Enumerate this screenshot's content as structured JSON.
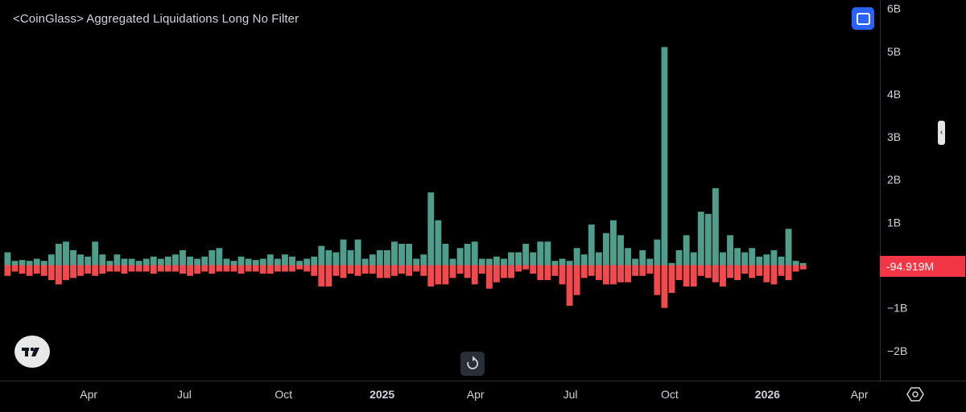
{
  "header": {
    "title": "<CoinGlass> Aggregated Liquidations Long No Filter"
  },
  "price_label": "-94.919M",
  "colors": {
    "background": "#000000",
    "positive": "#4e9e8b",
    "negative": "#f04a4f",
    "label_bg": "#f23645",
    "text": "#d1d4dc",
    "accent": "#2962ff"
  },
  "icons": {
    "fullscreen": "fullscreen-icon",
    "collapse": "chevron-left-icon",
    "logo": "tradingview-logo-icon",
    "reset": "reset-icon",
    "settings": "settings-icon"
  },
  "chart_data": {
    "type": "bar",
    "title": "<CoinGlass> Aggregated Liquidations Long No Filter",
    "ylim": [
      -2.7,
      6.2
    ],
    "y_unit": "B",
    "grid": false,
    "y_ticks": [
      {
        "value": 6,
        "label": "6B"
      },
      {
        "value": 5,
        "label": "5B"
      },
      {
        "value": 4,
        "label": "4B"
      },
      {
        "value": 3,
        "label": "3B"
      },
      {
        "value": 2,
        "label": "2B"
      },
      {
        "value": 1,
        "label": "1B"
      },
      {
        "value": -1,
        "label": "−1B"
      },
      {
        "value": -2,
        "label": "−2B"
      }
    ],
    "x_ticks": [
      {
        "index": 11.6,
        "label": "Apr",
        "bold": false
      },
      {
        "index": 24.7,
        "label": "Jul",
        "bold": false
      },
      {
        "index": 38.3,
        "label": "Oct",
        "bold": false
      },
      {
        "index": 51.8,
        "label": "2025",
        "bold": true
      },
      {
        "index": 64.6,
        "label": "Apr",
        "bold": false
      },
      {
        "index": 77.6,
        "label": "Jul",
        "bold": false
      },
      {
        "index": 91.2,
        "label": "Oct",
        "bold": false
      },
      {
        "index": 104.6,
        "label": "2026",
        "bold": true
      },
      {
        "index": 117.2,
        "label": "Apr",
        "bold": false
      }
    ],
    "x_range": [
      0,
      120
    ],
    "series": [
      {
        "positive": [
          0.3,
          0.1,
          0.12,
          0.1,
          0.15,
          0.1,
          0.25,
          0.5,
          0.55,
          0.35,
          0.25,
          0.2,
          0.55,
          0.25,
          0.1,
          0.25,
          0.15,
          0.15,
          0.1,
          0.15,
          0.2,
          0.15,
          0.2,
          0.25,
          0.35,
          0.2,
          0.15,
          0.2,
          0.35,
          0.4,
          0.15,
          0.1,
          0.2,
          0.15,
          0.12,
          0.15,
          0.25,
          0.15,
          0.25,
          0.2,
          0.1,
          0.15,
          0.2,
          0.45,
          0.35,
          0.3,
          0.6,
          0.35,
          0.6,
          0.15,
          0.25,
          0.35,
          0.35,
          0.55,
          0.5,
          0.5,
          0.15,
          0.25,
          1.7,
          1.05,
          0.5,
          0.15,
          0.4,
          0.5,
          0.55,
          0.15,
          0.15,
          0.2,
          0.15,
          0.3,
          0.3,
          0.5,
          0.3,
          0.55,
          0.55,
          0.1,
          0.15,
          0.1,
          0.4,
          0.25,
          0.95,
          0.3,
          0.75,
          1.05,
          0.7,
          0.4,
          0.15,
          0.35,
          0.15,
          0.6,
          5.1,
          0.05,
          0.35,
          0.7,
          0.3,
          1.25,
          1.2,
          1.8,
          0.3,
          0.7,
          0.4,
          0.3,
          0.4,
          0.2,
          0.25,
          0.35,
          0.2,
          0.85,
          0.1,
          0.05
        ],
        "negative": [
          -0.25,
          -0.15,
          -0.2,
          -0.25,
          -0.2,
          -0.25,
          -0.35,
          -0.45,
          -0.35,
          -0.3,
          -0.25,
          -0.2,
          -0.25,
          -0.2,
          -0.15,
          -0.15,
          -0.2,
          -0.15,
          -0.15,
          -0.15,
          -0.2,
          -0.15,
          -0.15,
          -0.15,
          -0.2,
          -0.25,
          -0.2,
          -0.15,
          -0.2,
          -0.15,
          -0.15,
          -0.15,
          -0.2,
          -0.15,
          -0.15,
          -0.2,
          -0.2,
          -0.15,
          -0.15,
          -0.15,
          -0.1,
          -0.15,
          -0.25,
          -0.5,
          -0.5,
          -0.25,
          -0.3,
          -0.2,
          -0.25,
          -0.2,
          -0.2,
          -0.3,
          -0.3,
          -0.25,
          -0.2,
          -0.25,
          -0.15,
          -0.25,
          -0.5,
          -0.45,
          -0.45,
          -0.3,
          -0.2,
          -0.3,
          -0.45,
          -0.2,
          -0.55,
          -0.4,
          -0.3,
          -0.3,
          -0.15,
          -0.1,
          -0.2,
          -0.35,
          -0.35,
          -0.25,
          -0.45,
          -0.95,
          -0.7,
          -0.3,
          -0.25,
          -0.35,
          -0.45,
          -0.45,
          -0.4,
          -0.4,
          -0.25,
          -0.25,
          -0.2,
          -0.7,
          -1.0,
          -0.65,
          -0.35,
          -0.5,
          -0.5,
          -0.25,
          -0.3,
          -0.4,
          -0.5,
          -0.3,
          -0.35,
          -0.2,
          -0.3,
          -0.25,
          -0.4,
          -0.45,
          -0.25,
          -0.35,
          -0.15,
          -0.1
        ]
      }
    ]
  }
}
